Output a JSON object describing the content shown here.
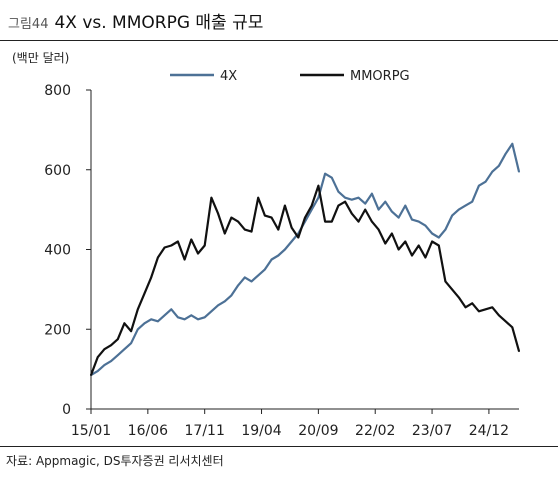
{
  "figure": {
    "number": "그림44",
    "title": "4X vs. MMORPG 매출 규모",
    "source": "자료: Appmagic, DS투자증권 리서치센터"
  },
  "chart_data": {
    "type": "line",
    "title": "4X vs. MMORPG 매출 규모",
    "unit_label": "(백만 달러)",
    "xlabel": "",
    "ylabel": "",
    "ylim": [
      0,
      800
    ],
    "yticks": [
      0,
      200,
      400,
      600,
      800
    ],
    "x_tick_labels": [
      "15/01",
      "16/06",
      "17/11",
      "19/04",
      "20/09",
      "22/02",
      "23/07",
      "24/12"
    ],
    "x_range": [
      "2015-01",
      "2025-09"
    ],
    "grid": false,
    "legend_position": "top-center",
    "x": [
      "2015-01",
      "2015-03",
      "2015-05",
      "2015-07",
      "2015-09",
      "2015-11",
      "2016-01",
      "2016-03",
      "2016-05",
      "2016-07",
      "2016-09",
      "2016-11",
      "2017-01",
      "2017-03",
      "2017-05",
      "2017-07",
      "2017-09",
      "2017-11",
      "2018-01",
      "2018-03",
      "2018-05",
      "2018-07",
      "2018-09",
      "2018-11",
      "2019-01",
      "2019-03",
      "2019-05",
      "2019-07",
      "2019-09",
      "2019-11",
      "2020-01",
      "2020-03",
      "2020-05",
      "2020-07",
      "2020-09",
      "2020-11",
      "2021-01",
      "2021-03",
      "2021-05",
      "2021-07",
      "2021-09",
      "2021-11",
      "2022-01",
      "2022-03",
      "2022-05",
      "2022-07",
      "2022-09",
      "2022-11",
      "2023-01",
      "2023-03",
      "2023-05",
      "2023-07",
      "2023-09",
      "2023-11",
      "2024-01",
      "2024-03",
      "2024-05",
      "2024-07",
      "2024-09",
      "2024-11",
      "2025-01",
      "2025-03",
      "2025-05",
      "2025-07",
      "2025-09"
    ],
    "series": [
      {
        "name": "4X",
        "color": "#4d7196",
        "values": [
          85,
          95,
          110,
          120,
          135,
          150,
          165,
          200,
          215,
          225,
          220,
          235,
          250,
          230,
          225,
          235,
          225,
          230,
          245,
          260,
          270,
          285,
          310,
          330,
          320,
          335,
          350,
          375,
          385,
          400,
          420,
          440,
          470,
          500,
          530,
          590,
          580,
          545,
          530,
          525,
          530,
          515,
          540,
          500,
          520,
          495,
          480,
          510,
          475,
          470,
          460,
          440,
          430,
          450,
          485,
          500,
          510,
          520,
          560,
          570,
          595,
          610,
          640,
          665,
          595
        ]
      },
      {
        "name": "MMORPG",
        "color": "#111111",
        "values": [
          85,
          130,
          150,
          160,
          175,
          215,
          195,
          250,
          290,
          330,
          380,
          405,
          410,
          420,
          375,
          425,
          390,
          410,
          530,
          490,
          440,
          480,
          470,
          450,
          445,
          530,
          485,
          480,
          450,
          510,
          455,
          430,
          480,
          510,
          560,
          470,
          470,
          510,
          520,
          490,
          470,
          500,
          470,
          450,
          415,
          440,
          400,
          420,
          385,
          410,
          380,
          420,
          410,
          320,
          300,
          280,
          255,
          265,
          245,
          250,
          255,
          235,
          220,
          205,
          145
        ]
      }
    ]
  }
}
